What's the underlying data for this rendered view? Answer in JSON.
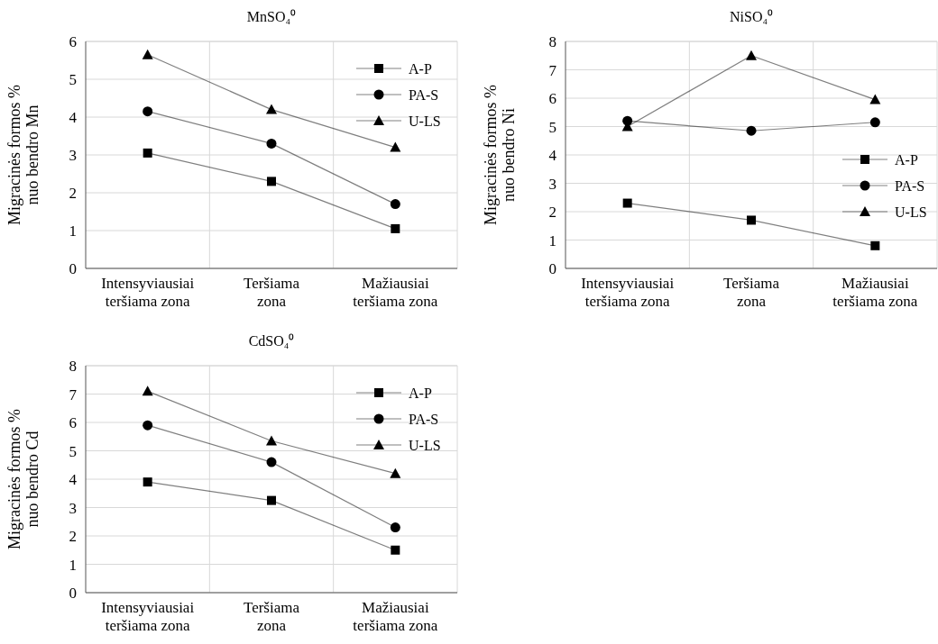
{
  "chart_data": [
    {
      "type": "line",
      "title": "MnSO₄⁰",
      "ylabel": "Migracinės formos % nuo bendro Mn",
      "categories": [
        "Intensyviausiai teršiama zona",
        "Teršiama zona",
        "Mažiausiai teršiama zona"
      ],
      "ylim": [
        0,
        6
      ],
      "yticks": [
        0,
        1,
        2,
        3,
        4,
        5,
        6
      ],
      "grid": true,
      "legend": "top right",
      "series": [
        {
          "name": "A-P",
          "color": "#000000",
          "marker": "square",
          "values": [
            3.05,
            2.3,
            1.05
          ]
        },
        {
          "name": "PA-S",
          "color": "#000000",
          "marker": "circle",
          "values": [
            4.15,
            3.3,
            1.7
          ]
        },
        {
          "name": "U-LS",
          "color": "#000000",
          "marker": "triangle",
          "values": [
            5.65,
            4.2,
            3.2
          ]
        }
      ]
    },
    {
      "type": "line",
      "title": "NiSO₄⁰",
      "ylabel": "Migracinės formos % nuo bendro Ni",
      "categories": [
        "Intensyviausiai teršiama zona",
        "Teršiama zona",
        "Mažiausiai teršiama zona"
      ],
      "ylim": [
        0,
        8
      ],
      "yticks": [
        0,
        1,
        2,
        3,
        4,
        5,
        6,
        7,
        8
      ],
      "grid": true,
      "legend": "right",
      "series": [
        {
          "name": "A-P",
          "color": "#000000",
          "marker": "square",
          "values": [
            2.3,
            1.7,
            0.8
          ]
        },
        {
          "name": "PA-S",
          "color": "#000000",
          "marker": "circle",
          "values": [
            5.2,
            4.85,
            5.15
          ]
        },
        {
          "name": "U-LS",
          "color": "#000000",
          "marker": "triangle",
          "values": [
            5.0,
            7.5,
            5.95
          ]
        }
      ]
    },
    {
      "type": "line",
      "title": "CdSO₄⁰",
      "ylabel": "Migracinės formos % nuo bendro Cd",
      "categories": [
        "Intensyviausiai teršiama zona",
        "Teršiama zona",
        "Mažiausiai teršiama zona"
      ],
      "ylim": [
        0,
        8
      ],
      "yticks": [
        0,
        1,
        2,
        3,
        4,
        5,
        6,
        7,
        8
      ],
      "grid": true,
      "legend": "top right",
      "series": [
        {
          "name": "A-P",
          "color": "#000000",
          "marker": "square",
          "values": [
            3.9,
            3.25,
            1.5
          ]
        },
        {
          "name": "PA-S",
          "color": "#000000",
          "marker": "circle",
          "values": [
            5.9,
            4.6,
            2.3
          ]
        },
        {
          "name": "U-LS",
          "color": "#000000",
          "marker": "triangle",
          "values": [
            7.1,
            5.35,
            4.2
          ]
        }
      ]
    }
  ]
}
